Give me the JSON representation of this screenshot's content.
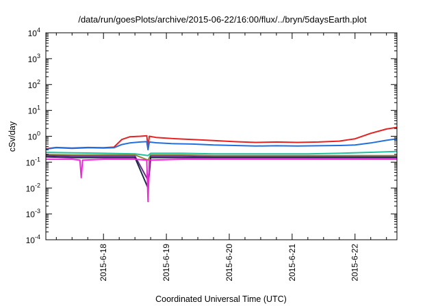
{
  "chart_data": {
    "type": "line",
    "title": "/data/run/goesPlots/archive/2015-06-22/16:00/flux/../bryn/5daysEarth.plot",
    "xlabel": "Coordinated Universal Time (UTC)",
    "ylabel": "cSv/day",
    "yscale": "log",
    "ylim": [
      0.0001,
      10000
    ],
    "xlim": [
      "2015-06-17 02:00",
      "2015-06-22 16:00"
    ],
    "x_ticks": [
      "2015-6-18",
      "2015-6-19",
      "2015-6-20",
      "2015-6-21",
      "2015-6-22"
    ],
    "y_ticks": [
      {
        "base": "10",
        "exp": "4"
      },
      {
        "base": "10",
        "exp": "3"
      },
      {
        "base": "10",
        "exp": "2"
      },
      {
        "base": "10",
        "exp": "1"
      },
      {
        "base": "10",
        "exp": "0"
      },
      {
        "base": "10",
        "exp": "-1"
      },
      {
        "base": "10",
        "exp": "-2"
      },
      {
        "base": "10",
        "exp": "-3"
      },
      {
        "base": "10",
        "exp": "-4"
      }
    ],
    "grid": false,
    "legend": "none",
    "series": [
      {
        "color": "#e8201f",
        "points": [
          [
            "2015-06-17 02:00",
            0.33
          ],
          [
            "2015-06-17 06:00",
            0.37
          ],
          [
            "2015-06-17 12:00",
            0.35
          ],
          [
            "2015-06-17 18:00",
            0.37
          ],
          [
            "2015-06-18 00:00",
            0.36
          ],
          [
            "2015-06-18 04:00",
            0.38
          ],
          [
            "2015-06-18 07:00",
            0.75
          ],
          [
            "2015-06-18 10:00",
            0.95
          ],
          [
            "2015-06-18 14:00",
            1.0
          ],
          [
            "2015-06-18 16:30",
            1.05
          ],
          [
            "2015-06-18 17:00",
            0.42
          ],
          [
            "2015-06-18 17:30",
            1.0
          ],
          [
            "2015-06-18 20:00",
            0.9
          ],
          [
            "2015-06-19 02:00",
            0.82
          ],
          [
            "2015-06-19 10:00",
            0.75
          ],
          [
            "2015-06-19 18:00",
            0.68
          ],
          [
            "2015-06-20 02:00",
            0.62
          ],
          [
            "2015-06-20 10:00",
            0.58
          ],
          [
            "2015-06-20 18:00",
            0.6
          ],
          [
            "2015-06-21 02:00",
            0.58
          ],
          [
            "2015-06-21 10:00",
            0.6
          ],
          [
            "2015-06-21 18:00",
            0.65
          ],
          [
            "2015-06-22 00:00",
            0.8
          ],
          [
            "2015-06-22 06:00",
            1.3
          ],
          [
            "2015-06-22 12:00",
            1.9
          ],
          [
            "2015-06-22 16:00",
            2.2
          ]
        ]
      },
      {
        "color": "#1f6fe0",
        "points": [
          [
            "2015-06-17 02:00",
            0.32
          ],
          [
            "2015-06-17 06:00",
            0.36
          ],
          [
            "2015-06-17 12:00",
            0.34
          ],
          [
            "2015-06-17 18:00",
            0.36
          ],
          [
            "2015-06-18 00:00",
            0.35
          ],
          [
            "2015-06-18 04:00",
            0.36
          ],
          [
            "2015-06-18 07:00",
            0.48
          ],
          [
            "2015-06-18 10:00",
            0.55
          ],
          [
            "2015-06-18 14:00",
            0.6
          ],
          [
            "2015-06-18 16:30",
            0.62
          ],
          [
            "2015-06-18 17:00",
            0.3
          ],
          [
            "2015-06-18 17:30",
            0.6
          ],
          [
            "2015-06-18 20:00",
            0.56
          ],
          [
            "2015-06-19 02:00",
            0.52
          ],
          [
            "2015-06-19 10:00",
            0.5
          ],
          [
            "2015-06-19 18:00",
            0.46
          ],
          [
            "2015-06-20 02:00",
            0.44
          ],
          [
            "2015-06-20 10:00",
            0.42
          ],
          [
            "2015-06-20 18:00",
            0.43
          ],
          [
            "2015-06-21 02:00",
            0.42
          ],
          [
            "2015-06-21 10:00",
            0.43
          ],
          [
            "2015-06-21 18:00",
            0.44
          ],
          [
            "2015-06-22 00:00",
            0.46
          ],
          [
            "2015-06-22 06:00",
            0.55
          ],
          [
            "2015-06-22 12:00",
            0.7
          ],
          [
            "2015-06-22 16:00",
            0.8
          ]
        ]
      },
      {
        "color": "#22bfa0",
        "points": [
          [
            "2015-06-17 02:00",
            0.24
          ],
          [
            "2015-06-17 12:00",
            0.23
          ],
          [
            "2015-06-18 00:00",
            0.22
          ],
          [
            "2015-06-18 12:00",
            0.21
          ],
          [
            "2015-06-18 17:00",
            0.18
          ],
          [
            "2015-06-18 18:00",
            0.22
          ],
          [
            "2015-06-19 06:00",
            0.22
          ],
          [
            "2015-06-19 18:00",
            0.21
          ],
          [
            "2015-06-20 06:00",
            0.21
          ],
          [
            "2015-06-20 18:00",
            0.21
          ],
          [
            "2015-06-21 06:00",
            0.21
          ],
          [
            "2015-06-21 18:00",
            0.22
          ],
          [
            "2015-06-22 06:00",
            0.24
          ],
          [
            "2015-06-22 16:00",
            0.26
          ]
        ]
      },
      {
        "color": "#8e8a3a",
        "points": [
          [
            "2015-06-17 02:00",
            0.2
          ],
          [
            "2015-06-17 12:00",
            0.19
          ],
          [
            "2015-06-18 00:00",
            0.19
          ],
          [
            "2015-06-18 12:00",
            0.19
          ],
          [
            "2015-06-18 17:00",
            0.12
          ],
          [
            "2015-06-18 18:00",
            0.19
          ],
          [
            "2015-06-19 06:00",
            0.19
          ],
          [
            "2015-06-19 18:00",
            0.18
          ],
          [
            "2015-06-20 06:00",
            0.18
          ],
          [
            "2015-06-20 18:00",
            0.18
          ],
          [
            "2015-06-21 06:00",
            0.18
          ],
          [
            "2015-06-21 18:00",
            0.18
          ],
          [
            "2015-06-22 06:00",
            0.18
          ],
          [
            "2015-06-22 16:00",
            0.18
          ]
        ]
      },
      {
        "color": "#6a2b8a",
        "points": [
          [
            "2015-06-17 02:00",
            0.18
          ],
          [
            "2015-06-17 12:00",
            0.17
          ],
          [
            "2015-06-18 00:00",
            0.17
          ],
          [
            "2015-06-18 12:00",
            0.17
          ],
          [
            "2015-06-18 17:00",
            0.02
          ],
          [
            "2015-06-18 18:00",
            0.17
          ],
          [
            "2015-06-19 06:00",
            0.17
          ],
          [
            "2015-06-19 18:00",
            0.16
          ],
          [
            "2015-06-20 06:00",
            0.16
          ],
          [
            "2015-06-20 18:00",
            0.16
          ],
          [
            "2015-06-21 06:00",
            0.16
          ],
          [
            "2015-06-21 18:00",
            0.16
          ],
          [
            "2015-06-22 06:00",
            0.16
          ],
          [
            "2015-06-22 16:00",
            0.16
          ]
        ]
      },
      {
        "color": "#1a2a4a",
        "points": [
          [
            "2015-06-17 02:00",
            0.16
          ],
          [
            "2015-06-17 12:00",
            0.15
          ],
          [
            "2015-06-18 00:00",
            0.15
          ],
          [
            "2015-06-18 12:00",
            0.15
          ],
          [
            "2015-06-18 17:00",
            0.01
          ],
          [
            "2015-06-18 18:00",
            0.15
          ],
          [
            "2015-06-19 06:00",
            0.15
          ],
          [
            "2015-06-19 18:00",
            0.15
          ],
          [
            "2015-06-20 06:00",
            0.15
          ],
          [
            "2015-06-20 18:00",
            0.15
          ],
          [
            "2015-06-21 06:00",
            0.15
          ],
          [
            "2015-06-21 18:00",
            0.15
          ],
          [
            "2015-06-22 06:00",
            0.15
          ],
          [
            "2015-06-22 16:00",
            0.15
          ]
        ]
      },
      {
        "color": "#ff1fe0",
        "points": [
          [
            "2015-06-17 02:00",
            0.13
          ],
          [
            "2015-06-17 12:00",
            0.13
          ],
          [
            "2015-06-17 15:00",
            0.12
          ],
          [
            "2015-06-17 15:30",
            0.025
          ],
          [
            "2015-06-17 16:00",
            0.12
          ],
          [
            "2015-06-18 00:00",
            0.13
          ],
          [
            "2015-06-18 12:00",
            0.13
          ],
          [
            "2015-06-18 16:30",
            0.12
          ],
          [
            "2015-06-18 17:00",
            0.003
          ],
          [
            "2015-06-18 17:30",
            0.12
          ],
          [
            "2015-06-19 06:00",
            0.13
          ],
          [
            "2015-06-19 18:00",
            0.13
          ],
          [
            "2015-06-20 06:00",
            0.13
          ],
          [
            "2015-06-20 18:00",
            0.13
          ],
          [
            "2015-06-21 06:00",
            0.13
          ],
          [
            "2015-06-21 18:00",
            0.13
          ],
          [
            "2015-06-22 06:00",
            0.13
          ],
          [
            "2015-06-22 16:00",
            0.13
          ]
        ]
      }
    ]
  }
}
